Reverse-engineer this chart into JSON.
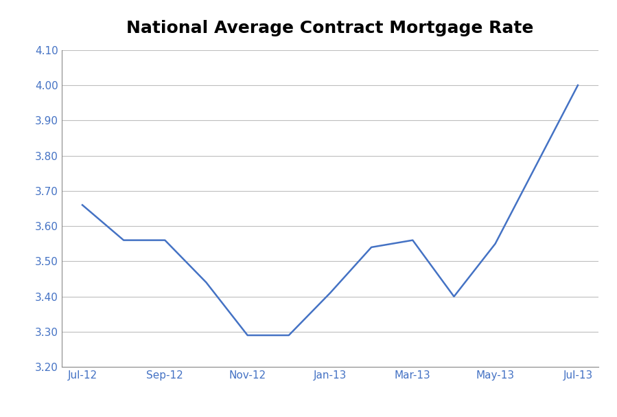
{
  "title": "National Average Contract Mortgage Rate",
  "x_labels": [
    "Jul-12",
    "Sep-12",
    "Nov-12",
    "Jan-13",
    "Mar-13",
    "May-13",
    "Jul-13"
  ],
  "x_tick_positions": [
    0,
    2,
    4,
    6,
    8,
    10,
    12
  ],
  "y_values": [
    3.66,
    3.56,
    3.56,
    3.44,
    3.29,
    3.29,
    3.41,
    3.54,
    3.56,
    3.4,
    3.55,
    4.0
  ],
  "x_data": [
    0,
    1,
    2,
    3,
    4,
    5,
    6,
    7,
    8,
    9,
    10,
    12
  ],
  "ylim": [
    3.2,
    4.1
  ],
  "yticks": [
    3.2,
    3.3,
    3.4,
    3.5,
    3.6,
    3.7,
    3.8,
    3.9,
    4.0,
    4.1
  ],
  "line_color": "#4472C4",
  "line_width": 1.8,
  "title_fontsize": 18,
  "tick_label_color": "#4472C4",
  "background_color": "#FFFFFF",
  "grid_color": "#BEBEBE",
  "spine_color": "#888888"
}
